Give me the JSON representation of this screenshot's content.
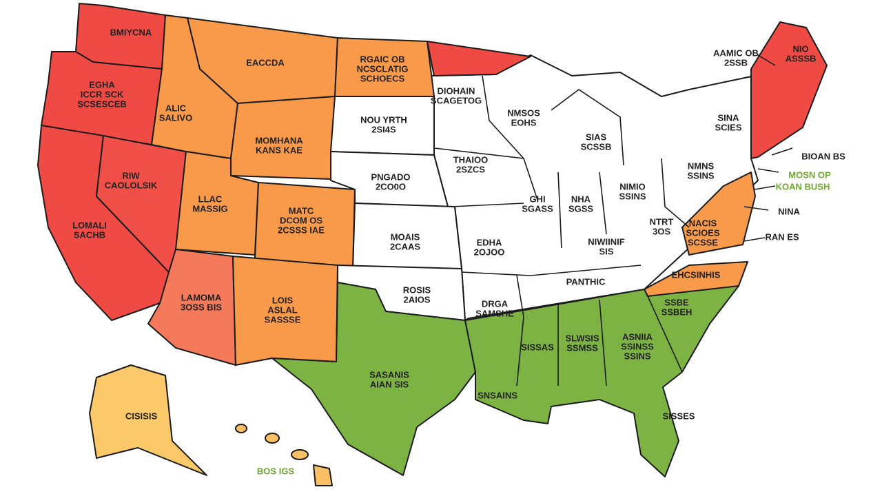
{
  "labels": [
    [
      "BMIYCNA"
    ],
    [
      "EGHA",
      "ICCR SCK",
      "SCSESCEB"
    ],
    [
      "ALIC",
      "SALIVO"
    ],
    [
      "EACCDA"
    ],
    [
      "RGAIC OB",
      "NCSCLATIG",
      "SCHOECS"
    ],
    [
      "DIOHAIN",
      "SCAGETOG"
    ],
    [
      "NOU YRTH",
      "2SI4S"
    ],
    [
      "NMSOS",
      "EOHS"
    ],
    [
      "SIAS",
      "SCSSB"
    ],
    [
      "MOMHANA",
      "KANS KAE"
    ],
    [
      "RIW",
      "CAOLOLSIK"
    ],
    [
      "LOMALI",
      "SACHB"
    ],
    [
      "LLAC",
      "MASSIG"
    ],
    [
      "MATC",
      "DCOM OS",
      "2CSSS IAE"
    ],
    [
      "PNGADO",
      "2CO0O"
    ],
    [
      "THAIOO",
      "2SZCS"
    ],
    [
      "GHI",
      "SGASS"
    ],
    [
      "NHA",
      "SGSS"
    ],
    [
      "NIMIO",
      "SSINS"
    ],
    [
      "NMNS",
      "SSINS"
    ],
    [
      "SINA",
      "SCIES"
    ],
    [
      "NIO",
      "ASSSB"
    ],
    [
      "MOAIS",
      "2CAAS"
    ],
    [
      "EDHA",
      "2OJOO"
    ],
    [
      "NTRT",
      "3OS"
    ],
    [
      "NACIS",
      "SCIOES",
      "SCSSE"
    ],
    [
      "NIWIINIF",
      "SIS"
    ],
    [
      "PANTHIC"
    ],
    [
      "EHCSINHIS"
    ],
    [
      "ROSIS",
      "2AIOS"
    ],
    [
      "DRGA",
      "SAMSHE"
    ],
    [
      "LAMOMA",
      "3OSS BIS"
    ],
    [
      "LOIS",
      "ASLAL",
      "SASSSE"
    ],
    [
      "SSBE",
      "SSBEH"
    ],
    [
      "SISSAS"
    ],
    [
      "SLWSIS",
      "SSMSS"
    ],
    [
      "ASNIIA",
      "SSINSS",
      "SSINS"
    ],
    [
      "SASANIS",
      "AIAN SIS"
    ],
    [
      "SNSAINS"
    ],
    [
      "SISSES"
    ],
    [
      "CISISIS"
    ],
    [
      "AAMIC OB",
      "2SSB"
    ],
    [
      "BOS IGS"
    ],
    [
      "BIOAN BS"
    ],
    [
      "MOSN OP"
    ],
    [
      "KOAN BUSH"
    ],
    [
      "NINA"
    ],
    [
      "RAN ES"
    ]
  ]
}
